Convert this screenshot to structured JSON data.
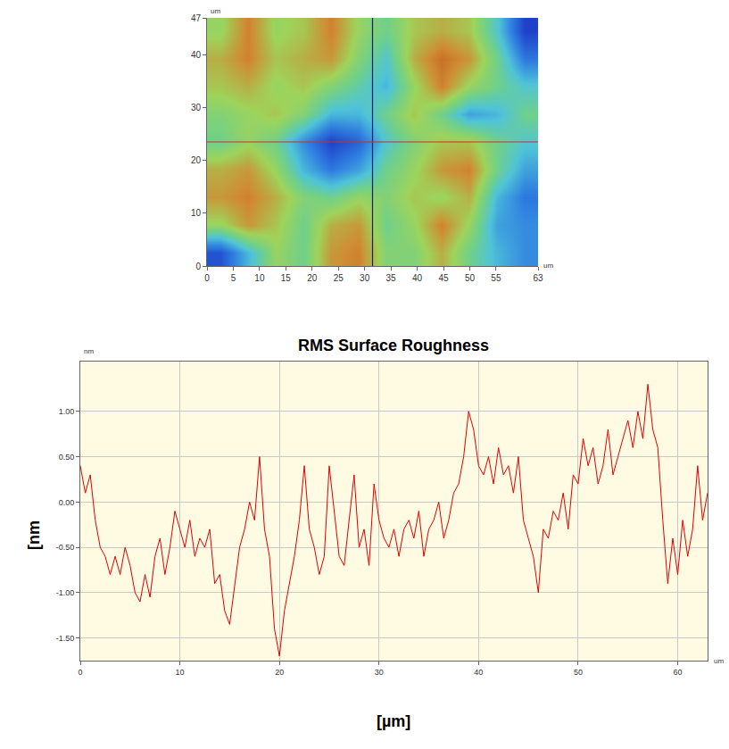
{
  "chart_data": [
    {
      "type": "heatmap",
      "xlabel": "um",
      "ylabel": "um",
      "x": [
        2.625,
        7.875,
        13.125,
        18.375,
        23.625,
        28.875,
        34.125,
        39.375,
        44.625,
        49.875,
        55.125,
        60.375
      ],
      "y": [
        2.6,
        7.8,
        13.1,
        18.3,
        23.5,
        28.7,
        33.9,
        39.2,
        44.4
      ],
      "z": [
        [
          -0.8,
          -0.3,
          0.2,
          0.0,
          0.5,
          0.6,
          0.1,
          0.1,
          0.4,
          0.0,
          -0.3,
          -0.5
        ],
        [
          0.2,
          0.5,
          0.3,
          0.0,
          0.4,
          0.5,
          0.0,
          0.2,
          0.6,
          0.2,
          -0.4,
          -0.5
        ],
        [
          0.5,
          0.6,
          0.4,
          0.1,
          0.0,
          0.2,
          0.1,
          0.3,
          0.2,
          0.4,
          -0.3,
          -0.6
        ],
        [
          0.4,
          0.5,
          0.2,
          -0.3,
          -0.6,
          -0.4,
          0.0,
          0.2,
          0.5,
          0.6,
          0.0,
          -0.4
        ],
        [
          0.0,
          0.2,
          0.0,
          -0.5,
          -0.9,
          -0.7,
          -0.2,
          0.1,
          0.3,
          0.3,
          0.0,
          -0.2
        ],
        [
          0.1,
          0.2,
          0.3,
          0.1,
          -0.3,
          -0.3,
          0.0,
          0.3,
          0.0,
          -0.4,
          -0.3,
          0.0
        ],
        [
          0.3,
          0.4,
          0.2,
          0.3,
          0.1,
          -0.1,
          -0.3,
          0.2,
          0.6,
          0.2,
          0.0,
          -0.2
        ],
        [
          0.4,
          0.6,
          0.3,
          0.4,
          0.5,
          0.1,
          -0.2,
          0.4,
          0.7,
          0.5,
          0.0,
          -0.6
        ],
        [
          0.2,
          0.6,
          0.2,
          0.3,
          0.6,
          0.2,
          0.0,
          0.3,
          0.4,
          0.3,
          -0.2,
          -0.9
        ]
      ],
      "zlim": [
        -1,
        1
      ],
      "xlim": [
        0,
        63
      ],
      "ylim": [
        0,
        47
      ],
      "xticks": [
        0,
        5,
        10,
        15,
        20,
        25,
        30,
        35,
        40,
        45,
        50,
        55,
        63
      ],
      "yticks": [
        0,
        10,
        20,
        30,
        40,
        47
      ],
      "cursor_x": 31.5,
      "cursor_y": 23.5,
      "grid": false
    },
    {
      "type": "line",
      "title": "RMS Surface Roughness",
      "xlabel": "[µm]",
      "ylabel": "[nm",
      "x_unit": "um",
      "y_unit": "nm",
      "color": "#e00000",
      "x": [
        0,
        0.5,
        1,
        1.5,
        2,
        2.5,
        3,
        3.5,
        4,
        4.5,
        5,
        5.5,
        6,
        6.5,
        7,
        7.5,
        8,
        8.5,
        9,
        9.5,
        10,
        10.5,
        11,
        11.5,
        12,
        12.5,
        13,
        13.5,
        14,
        14.5,
        15,
        15.5,
        16,
        16.5,
        17,
        17.5,
        18,
        18.5,
        19,
        19.5,
        20,
        20.5,
        21,
        21.5,
        22,
        22.5,
        23,
        23.5,
        24,
        24.5,
        25,
        25.5,
        26,
        26.5,
        27,
        27.5,
        28,
        28.5,
        29,
        29.5,
        30,
        30.5,
        31,
        31.5,
        32,
        32.5,
        33,
        33.5,
        34,
        34.5,
        35,
        35.5,
        36,
        36.5,
        37,
        37.5,
        38,
        38.5,
        39,
        39.5,
        40,
        40.5,
        41,
        41.5,
        42,
        42.5,
        43,
        43.5,
        44,
        44.5,
        45,
        45.5,
        46,
        46.5,
        47,
        47.5,
        48,
        48.5,
        49,
        49.5,
        50,
        50.5,
        51,
        51.5,
        52,
        52.5,
        53,
        53.5,
        54,
        54.5,
        55,
        55.5,
        56,
        56.5,
        57,
        57.5,
        58,
        58.5,
        59,
        59.5,
        60,
        60.5,
        61,
        61.5,
        62,
        62.5,
        63
      ],
      "values": [
        0.4,
        0.1,
        0.3,
        -0.2,
        -0.5,
        -0.6,
        -0.8,
        -0.6,
        -0.8,
        -0.5,
        -0.7,
        -1.0,
        -1.1,
        -0.8,
        -1.05,
        -0.6,
        -0.4,
        -0.8,
        -0.5,
        -0.1,
        -0.3,
        -0.5,
        -0.2,
        -0.6,
        -0.4,
        -0.5,
        -0.3,
        -0.9,
        -0.8,
        -1.2,
        -1.35,
        -0.9,
        -0.5,
        -0.3,
        0.0,
        -0.2,
        0.5,
        -0.3,
        -0.6,
        -1.4,
        -1.7,
        -1.2,
        -0.9,
        -0.6,
        -0.2,
        0.4,
        -0.3,
        -0.5,
        -0.8,
        -0.6,
        0.4,
        -0.1,
        -0.6,
        -0.7,
        -0.2,
        0.3,
        -0.5,
        -0.3,
        -0.7,
        0.2,
        -0.2,
        -0.4,
        -0.5,
        -0.3,
        -0.6,
        -0.3,
        -0.2,
        -0.4,
        -0.1,
        -0.6,
        -0.3,
        -0.2,
        0.0,
        -0.4,
        -0.2,
        0.1,
        0.2,
        0.5,
        1.0,
        0.8,
        0.4,
        0.3,
        0.5,
        0.2,
        0.6,
        0.3,
        0.4,
        0.1,
        0.5,
        -0.2,
        -0.4,
        -0.6,
        -1.0,
        -0.3,
        -0.4,
        -0.1,
        -0.2,
        0.1,
        -0.3,
        0.3,
        0.2,
        0.7,
        0.4,
        0.6,
        0.2,
        0.4,
        0.8,
        0.3,
        0.5,
        0.7,
        0.9,
        0.6,
        1.0,
        0.7,
        1.3,
        0.8,
        0.6,
        -0.2,
        -0.9,
        -0.4,
        -0.8,
        -0.2,
        -0.6,
        -0.3,
        0.4,
        -0.2,
        0.1
      ],
      "xlim": [
        0,
        63
      ],
      "ylim": [
        -1.75,
        1.55
      ],
      "xticks": [
        0,
        10,
        20,
        30,
        40,
        50,
        60
      ],
      "yticks": [
        {
          "value": -1.5,
          "label": "-1.50"
        },
        {
          "value": -1.0,
          "label": "-1.00"
        },
        {
          "value": -0.5,
          "label": "-0.50"
        },
        {
          "value": 0,
          "label": "0.00"
        },
        {
          "value": 0.5,
          "label": "0.50"
        },
        {
          "value": 1.0,
          "label": "1.00"
        }
      ],
      "grid": true
    }
  ]
}
